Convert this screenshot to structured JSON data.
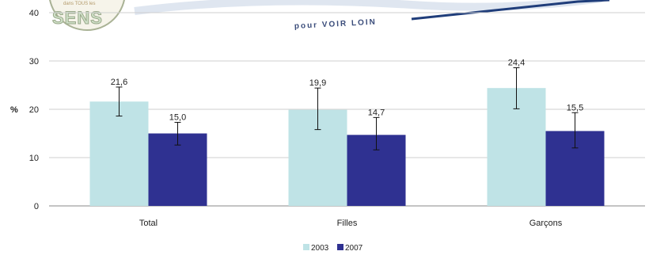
{
  "header": {
    "logo_text": "SENS",
    "logo_small": "dans TOUS les",
    "tagline": "pour VOIR LOIN"
  },
  "chart_data": {
    "type": "bar",
    "ylabel": "%",
    "ylim": [
      0,
      40
    ],
    "yticks": [
      "0",
      "10",
      "20",
      "30",
      "40"
    ],
    "categories": [
      "Total",
      "Filles",
      "Garçons"
    ],
    "series": [
      {
        "name": "2003",
        "color": "#bfe3e6",
        "values": [
          21.6,
          19.9,
          24.4
        ],
        "labels": [
          "21,6",
          "19,9",
          "24,4"
        ],
        "err_low": [
          18.6,
          15.8,
          20.1
        ],
        "err_high": [
          24.6,
          24.4,
          28.6
        ]
      },
      {
        "name": "2007",
        "color": "#2f3191",
        "values": [
          15.0,
          14.7,
          15.5
        ],
        "labels": [
          "15,0",
          "14,7",
          "15,5"
        ],
        "err_low": [
          12.6,
          11.6,
          12.0
        ],
        "err_high": [
          17.3,
          18.3,
          19.3
        ]
      }
    ],
    "legend_position": "bottom-center",
    "grid": true
  }
}
